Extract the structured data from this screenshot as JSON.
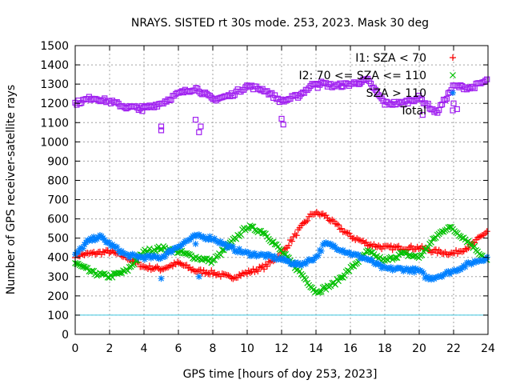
{
  "chart_data": {
    "type": "scatter",
    "title": "NRAYS. SISTED rt 30s mode. 253, 2023. Mask 30 deg",
    "xlabel": "GPS time [hours of doy 253, 2023]",
    "ylabel": "Number of GPS receiver-satellite rays",
    "xlim": [
      0,
      24
    ],
    "ylim": [
      0,
      1500
    ],
    "xticks": [
      0,
      2,
      4,
      6,
      8,
      10,
      12,
      14,
      16,
      18,
      20,
      22,
      24
    ],
    "yticks": [
      0,
      100,
      200,
      300,
      400,
      500,
      600,
      700,
      800,
      900,
      1000,
      1100,
      1200,
      1300,
      1400,
      1500
    ],
    "grid": true,
    "legend_position": "top-right",
    "series": [
      {
        "name": "I1: SZA < 70",
        "marker": "+",
        "color": "#ff0000",
        "x": [
          0,
          1,
          2,
          3,
          4,
          5,
          6,
          7,
          8,
          9,
          10,
          11,
          12,
          13,
          13.8,
          14.5,
          15,
          16,
          17,
          18,
          19,
          20,
          21,
          22,
          23,
          24
        ],
        "y": [
          410,
          420,
          430,
          400,
          350,
          340,
          370,
          330,
          320,
          295,
          320,
          350,
          420,
          540,
          630,
          620,
          580,
          510,
          470,
          450,
          450,
          450,
          430,
          420,
          460,
          540
        ]
      },
      {
        "name": "I2: 70 <= SZA <= 110",
        "marker": "x",
        "color": "#00c000",
        "x": [
          0,
          1,
          2,
          3,
          4,
          5,
          6,
          7,
          8,
          9,
          10,
          11,
          12,
          13,
          14,
          15,
          16,
          17,
          18,
          19,
          20,
          21,
          21.7,
          22.5,
          23,
          24
        ],
        "y": [
          370,
          320,
          300,
          330,
          430,
          450,
          430,
          400,
          380,
          470,
          560,
          530,
          430,
          330,
          220,
          260,
          340,
          430,
          380,
          420,
          400,
          510,
          560,
          510,
          470,
          380
        ]
      },
      {
        "name": "SZA > 110",
        "marker": "*",
        "color": "#0080ff",
        "x": [
          0,
          0.7,
          1.4,
          2,
          3,
          4,
          5,
          6,
          7,
          8,
          9,
          10,
          11,
          12,
          13,
          14,
          14.5,
          15,
          16,
          17,
          18,
          19,
          20,
          20.5,
          21,
          22,
          23,
          24
        ],
        "y": [
          410,
          480,
          510,
          470,
          410,
          400,
          400,
          460,
          510,
          500,
          450,
          420,
          410,
          390,
          360,
          400,
          470,
          460,
          420,
          390,
          340,
          340,
          330,
          290,
          300,
          330,
          370,
          400
        ]
      },
      {
        "name": "Total",
        "marker": "square",
        "color": "#a020f0",
        "x": [
          0,
          1,
          2,
          3,
          4,
          5,
          6,
          7,
          8,
          9,
          10,
          11,
          12,
          13,
          14,
          15,
          16,
          17,
          18,
          19,
          20,
          21,
          22,
          23,
          24
        ],
        "y": [
          1200,
          1230,
          1210,
          1180,
          1175,
          1200,
          1250,
          1280,
          1220,
          1240,
          1290,
          1270,
          1210,
          1240,
          1310,
          1290,
          1300,
          1320,
          1200,
          1200,
          1230,
          1150,
          1290,
          1280,
          1320
        ]
      }
    ],
    "reference_line": {
      "y": 100,
      "color": "#40c8e0"
    }
  }
}
